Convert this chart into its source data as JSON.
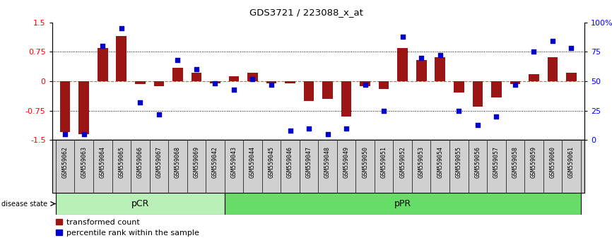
{
  "title": "GDS3721 / 223088_x_at",
  "samples": [
    "GSM559062",
    "GSM559063",
    "GSM559064",
    "GSM559065",
    "GSM559066",
    "GSM559067",
    "GSM559068",
    "GSM559069",
    "GSM559042",
    "GSM559043",
    "GSM559044",
    "GSM559045",
    "GSM559046",
    "GSM559047",
    "GSM559048",
    "GSM559049",
    "GSM559050",
    "GSM559051",
    "GSM559052",
    "GSM559053",
    "GSM559054",
    "GSM559055",
    "GSM559056",
    "GSM559057",
    "GSM559058",
    "GSM559059",
    "GSM559060",
    "GSM559061"
  ],
  "bar_values": [
    -1.3,
    -1.35,
    0.85,
    1.15,
    -0.07,
    -0.12,
    0.35,
    0.22,
    -0.05,
    0.12,
    0.22,
    -0.05,
    -0.05,
    -0.5,
    -0.45,
    -0.9,
    -0.12,
    -0.2,
    0.85,
    0.55,
    0.62,
    -0.28,
    -0.65,
    -0.42,
    -0.08,
    0.18,
    0.62,
    0.22
  ],
  "percentile_values": [
    5,
    5,
    80,
    95,
    32,
    22,
    68,
    60,
    48,
    43,
    52,
    47,
    8,
    10,
    5,
    10,
    47,
    25,
    88,
    70,
    72,
    25,
    13,
    20,
    47,
    75,
    84,
    78
  ],
  "pCR_count": 9,
  "pPR_count": 19,
  "bar_color": "#9b1515",
  "dot_color": "#0000cc",
  "pCR_color": "#b8f0b8",
  "pPR_color": "#66dd66",
  "ylim_left": [
    -1.5,
    1.5
  ],
  "ylim_right": [
    0,
    100
  ],
  "hlines_dotted": [
    0.75,
    -0.75
  ],
  "hline_zero": 0.0,
  "legend_bar_label": "transformed count",
  "legend_dot_label": "percentile rank within the sample"
}
